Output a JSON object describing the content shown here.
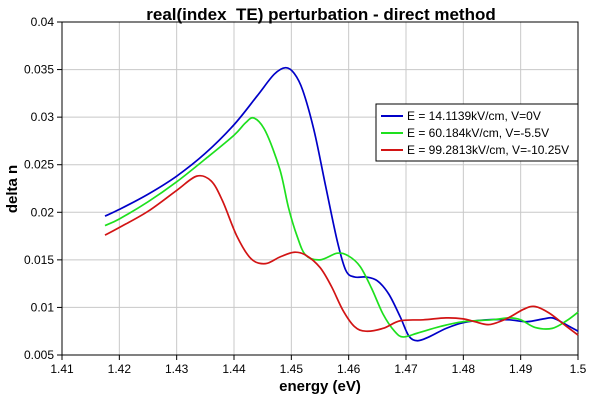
{
  "chart_data": {
    "type": "line",
    "title": "real(index_TE) perturbation - direct method",
    "xlabel": "energy (eV)",
    "ylabel": "delta n",
    "xlim": [
      1.41,
      1.5
    ],
    "ylim": [
      0.005,
      0.04
    ],
    "x_ticks": [
      "1.41",
      "1.42",
      "1.43",
      "1.44",
      "1.45",
      "1.46",
      "1.47",
      "1.48",
      "1.49",
      "1.5"
    ],
    "y_ticks": [
      "0.005",
      "0.01",
      "0.015",
      "0.02",
      "0.025",
      "0.03",
      "0.035",
      "0.04"
    ],
    "grid": true,
    "legend_position": "right",
    "series": [
      {
        "name": "E = 14.1139kV/cm, V=0V",
        "color": "#0000c8",
        "points": [
          [
            1.4175,
            0.0196
          ],
          [
            1.42,
            0.0203
          ],
          [
            1.425,
            0.0219
          ],
          [
            1.43,
            0.0238
          ],
          [
            1.435,
            0.0262
          ],
          [
            1.44,
            0.0292
          ],
          [
            1.444,
            0.0322
          ],
          [
            1.447,
            0.0345
          ],
          [
            1.449,
            0.0352
          ],
          [
            1.4505,
            0.0346
          ],
          [
            1.452,
            0.0328
          ],
          [
            1.454,
            0.0285
          ],
          [
            1.456,
            0.0227
          ],
          [
            1.458,
            0.017
          ],
          [
            1.4595,
            0.0139
          ],
          [
            1.461,
            0.0132
          ],
          [
            1.463,
            0.0132
          ],
          [
            1.465,
            0.0128
          ],
          [
            1.467,
            0.0114
          ],
          [
            1.469,
            0.009
          ],
          [
            1.4705,
            0.007
          ],
          [
            1.472,
            0.0065
          ],
          [
            1.474,
            0.0069
          ],
          [
            1.477,
            0.0078
          ],
          [
            1.48,
            0.0084
          ],
          [
            1.484,
            0.0087
          ],
          [
            1.488,
            0.0087
          ],
          [
            1.491,
            0.0085
          ],
          [
            1.494,
            0.0088
          ],
          [
            1.4955,
            0.0089
          ],
          [
            1.497,
            0.0085
          ],
          [
            1.5,
            0.0075
          ]
        ]
      },
      {
        "name": "E = 60.184kV/cm, V=-5.5V",
        "color": "#1ee01e",
        "points": [
          [
            1.4175,
            0.0186
          ],
          [
            1.42,
            0.0193
          ],
          [
            1.425,
            0.0211
          ],
          [
            1.43,
            0.0232
          ],
          [
            1.435,
            0.0256
          ],
          [
            1.44,
            0.0281
          ],
          [
            1.442,
            0.0294
          ],
          [
            1.4435,
            0.0299
          ],
          [
            1.4455,
            0.0285
          ],
          [
            1.448,
            0.0245
          ],
          [
            1.4495,
            0.0205
          ],
          [
            1.451,
            0.0175
          ],
          [
            1.4525,
            0.0155
          ],
          [
            1.455,
            0.015
          ],
          [
            1.458,
            0.0157
          ],
          [
            1.46,
            0.0154
          ],
          [
            1.462,
            0.0143
          ],
          [
            1.464,
            0.012
          ],
          [
            1.466,
            0.0093
          ],
          [
            1.468,
            0.0075
          ],
          [
            1.4695,
            0.0069
          ],
          [
            1.472,
            0.0073
          ],
          [
            1.476,
            0.008
          ],
          [
            1.48,
            0.0085
          ],
          [
            1.485,
            0.0087
          ],
          [
            1.488,
            0.0089
          ],
          [
            1.49,
            0.0087
          ],
          [
            1.4925,
            0.0079
          ],
          [
            1.4955,
            0.0078
          ],
          [
            1.498,
            0.0086
          ],
          [
            1.5,
            0.0095
          ]
        ]
      },
      {
        "name": "E = 99.2813kV/cm, V=-10.25V",
        "color": "#d21414",
        "points": [
          [
            1.4175,
            0.0176
          ],
          [
            1.42,
            0.0184
          ],
          [
            1.425,
            0.0201
          ],
          [
            1.43,
            0.0223
          ],
          [
            1.4335,
            0.0238
          ],
          [
            1.436,
            0.0233
          ],
          [
            1.438,
            0.0212
          ],
          [
            1.4405,
            0.0175
          ],
          [
            1.443,
            0.0151
          ],
          [
            1.4455,
            0.0146
          ],
          [
            1.448,
            0.0153
          ],
          [
            1.4505,
            0.0158
          ],
          [
            1.4525,
            0.0155
          ],
          [
            1.455,
            0.0142
          ],
          [
            1.457,
            0.0122
          ],
          [
            1.459,
            0.0097
          ],
          [
            1.461,
            0.008
          ],
          [
            1.463,
            0.0075
          ],
          [
            1.466,
            0.0078
          ],
          [
            1.469,
            0.0086
          ],
          [
            1.473,
            0.0087
          ],
          [
            1.477,
            0.0089
          ],
          [
            1.48,
            0.0088
          ],
          [
            1.482,
            0.0085
          ],
          [
            1.4845,
            0.0082
          ],
          [
            1.4875,
            0.0088
          ],
          [
            1.4905,
            0.0098
          ],
          [
            1.4925,
            0.0101
          ],
          [
            1.495,
            0.0094
          ],
          [
            1.498,
            0.008
          ],
          [
            1.5,
            0.0071
          ]
        ]
      }
    ]
  }
}
